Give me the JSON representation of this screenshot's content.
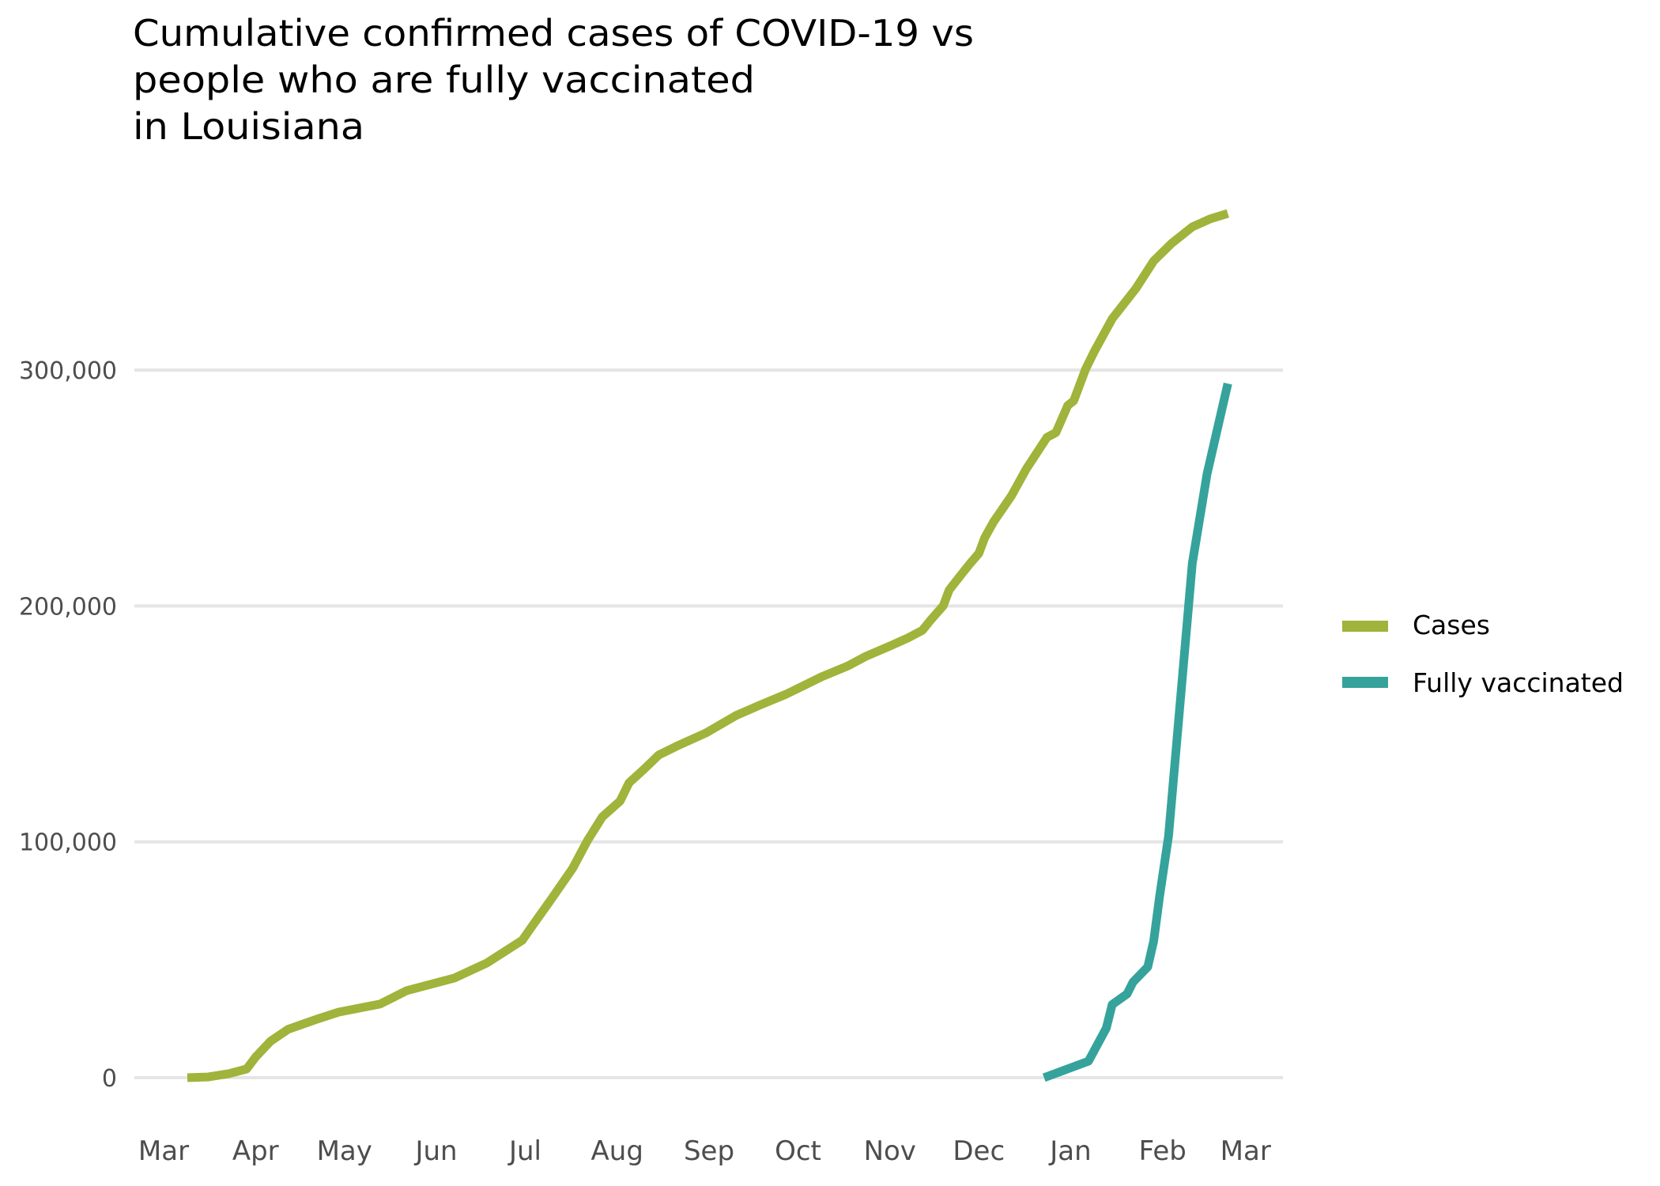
{
  "chart_data": {
    "type": "line",
    "title_lines": [
      "Cumulative confirmed cases of COVID-19 vs",
      "people who are fully vaccinated",
      "in Louisiana"
    ],
    "xlabel": "",
    "ylabel": "",
    "x_type": "date",
    "xlim": [
      "2020-03-01",
      "2021-03-01"
    ],
    "ylim": [
      0,
      370000
    ],
    "grid": true,
    "y_ticks": [
      {
        "value": 0,
        "label": "0"
      },
      {
        "value": 100000,
        "label": "100,000"
      },
      {
        "value": 200000,
        "label": "200,000"
      },
      {
        "value": 300000,
        "label": "300,000"
      }
    ],
    "x_ticks": [
      {
        "date": "2020-03-01",
        "label": "Mar"
      },
      {
        "date": "2020-04-01",
        "label": "Apr"
      },
      {
        "date": "2020-05-01",
        "label": "May"
      },
      {
        "date": "2020-06-01",
        "label": "Jun"
      },
      {
        "date": "2020-07-01",
        "label": "Jul"
      },
      {
        "date": "2020-08-01",
        "label": "Aug"
      },
      {
        "date": "2020-09-01",
        "label": "Sep"
      },
      {
        "date": "2020-10-01",
        "label": "Oct"
      },
      {
        "date": "2020-11-01",
        "label": "Nov"
      },
      {
        "date": "2020-12-01",
        "label": "Dec"
      },
      {
        "date": "2021-01-01",
        "label": "Jan"
      },
      {
        "date": "2021-02-01",
        "label": "Feb"
      },
      {
        "date": "2021-03-01",
        "label": "Mar"
      }
    ],
    "legend_position": "right",
    "series": [
      {
        "name": "Cases",
        "color": "#a0b33b",
        "points": [
          [
            "2020-03-09",
            0
          ],
          [
            "2020-03-16",
            300
          ],
          [
            "2020-03-23",
            1700
          ],
          [
            "2020-03-29",
            3700
          ],
          [
            "2020-04-01",
            8700
          ],
          [
            "2020-04-06",
            15400
          ],
          [
            "2020-04-12",
            20500
          ],
          [
            "2020-04-21",
            24500
          ],
          [
            "2020-04-29",
            27800
          ],
          [
            "2020-05-13",
            31200
          ],
          [
            "2020-05-22",
            36900
          ],
          [
            "2020-06-07",
            42200
          ],
          [
            "2020-06-18",
            48600
          ],
          [
            "2020-06-30",
            58300
          ],
          [
            "2020-07-03",
            63700
          ],
          [
            "2020-07-10",
            76100
          ],
          [
            "2020-07-17",
            88800
          ],
          [
            "2020-07-22",
            100600
          ],
          [
            "2020-07-27",
            110600
          ],
          [
            "2020-08-02",
            117300
          ],
          [
            "2020-08-05",
            125000
          ],
          [
            "2020-08-10",
            130700
          ],
          [
            "2020-08-15",
            136800
          ],
          [
            "2020-08-22",
            141100
          ],
          [
            "2020-08-31",
            146200
          ],
          [
            "2020-09-10",
            153500
          ],
          [
            "2020-09-18",
            157900
          ],
          [
            "2020-09-27",
            162600
          ],
          [
            "2020-10-09",
            170000
          ],
          [
            "2020-10-18",
            174700
          ],
          [
            "2020-10-24",
            178700
          ],
          [
            "2020-11-01",
            183000
          ],
          [
            "2020-11-07",
            186400
          ],
          [
            "2020-11-12",
            189700
          ],
          [
            "2020-11-15",
            194400
          ],
          [
            "2020-11-19",
            200100
          ],
          [
            "2020-11-21",
            206800
          ],
          [
            "2020-11-25",
            213200
          ],
          [
            "2020-11-28",
            217900
          ],
          [
            "2020-12-01",
            222300
          ],
          [
            "2020-12-03",
            229000
          ],
          [
            "2020-12-06",
            235700
          ],
          [
            "2020-12-12",
            246700
          ],
          [
            "2020-12-17",
            258100
          ],
          [
            "2020-12-24",
            271500
          ],
          [
            "2020-12-27",
            273500
          ],
          [
            "2020-12-31",
            285000
          ],
          [
            "2021-01-02",
            287000
          ],
          [
            "2021-01-06",
            300400
          ],
          [
            "2021-01-09",
            308000
          ],
          [
            "2021-01-15",
            321800
          ],
          [
            "2021-01-23",
            334600
          ],
          [
            "2021-01-29",
            346300
          ],
          [
            "2021-02-04",
            353700
          ],
          [
            "2021-02-11",
            360700
          ],
          [
            "2021-02-17",
            364100
          ],
          [
            "2021-02-23",
            366400
          ]
        ]
      },
      {
        "name": "Fully vaccinated",
        "color": "#35a39b",
        "points": [
          [
            "2020-12-23",
            0
          ],
          [
            "2021-01-07",
            7000
          ],
          [
            "2021-01-13",
            21000
          ],
          [
            "2021-01-15",
            31000
          ],
          [
            "2021-01-20",
            35500
          ],
          [
            "2021-01-22",
            40500
          ],
          [
            "2021-01-27",
            47000
          ],
          [
            "2021-01-29",
            58000
          ],
          [
            "2021-01-31",
            77000
          ],
          [
            "2021-02-03",
            102500
          ],
          [
            "2021-02-11",
            218000
          ],
          [
            "2021-02-16",
            256000
          ],
          [
            "2021-02-23",
            294300
          ]
        ]
      }
    ]
  }
}
